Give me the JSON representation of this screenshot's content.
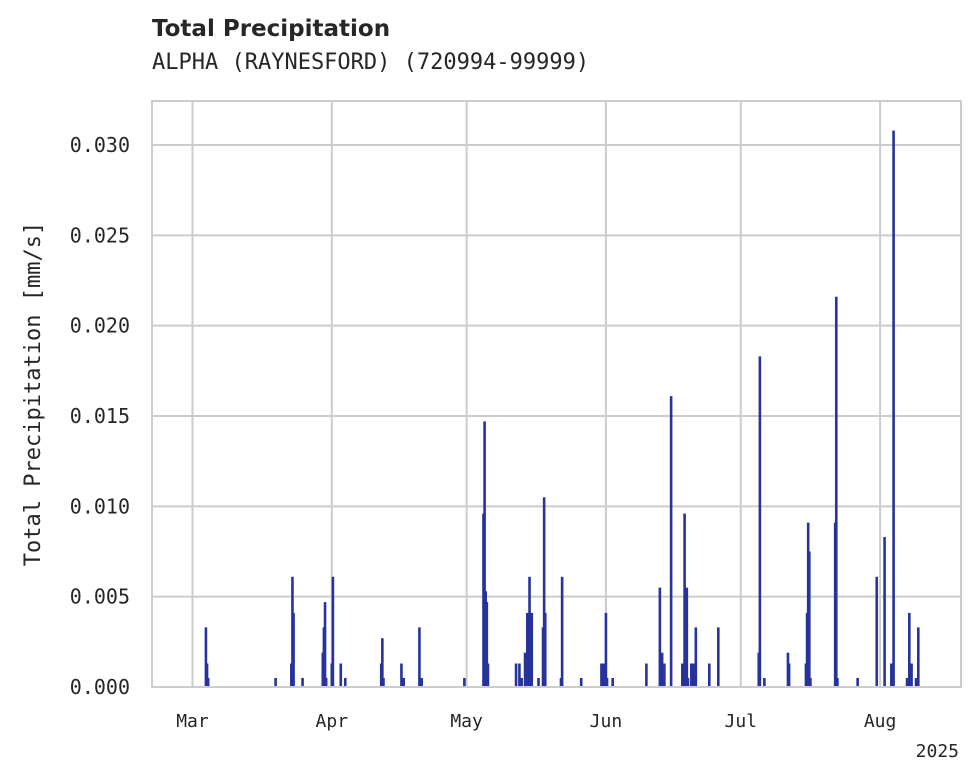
{
  "title": "Total Precipitation",
  "subtitle": "ALPHA (RAYNESFORD) (720994-99999)",
  "chart_data": {
    "type": "bar",
    "title": "Total Precipitation",
    "subtitle": "ALPHA (RAYNESFORD) (720994-99999)",
    "xlabel": "",
    "ylabel": "Total Precipitation [mm/s]",
    "ylim": [
      0,
      0.0325
    ],
    "y_ticks": [
      "0.000",
      "0.005",
      "0.010",
      "0.015",
      "0.020",
      "0.025",
      "0.030"
    ],
    "y_tick_values": [
      0,
      0.005,
      0.01,
      0.015,
      0.02,
      0.025,
      0.03
    ],
    "x_range": [
      "2025-02-20",
      "2025-08-19"
    ],
    "x_ticks": [
      {
        "date": "2025-03-01",
        "label": "Mar"
      },
      {
        "date": "2025-04-01",
        "label": "Apr"
      },
      {
        "date": "2025-05-01",
        "label": "May"
      },
      {
        "date": "2025-06-01",
        "label": "Jun"
      },
      {
        "date": "2025-07-01",
        "label": "Jul"
      },
      {
        "date": "2025-08-01",
        "label": "Aug"
      }
    ],
    "year_label": "2025",
    "grid": true,
    "bar_color": "#27339a",
    "series": [
      {
        "x": [
          "2025-03-04T00:00",
          "2025-03-04T06:00",
          "2025-03-04T12:00",
          "2025-03-19T12:00",
          "2025-03-23T00:00",
          "2025-03-23T06:00",
          "2025-03-23T12:00",
          "2025-03-25T12:00",
          "2025-03-30T00:00",
          "2025-03-30T06:00",
          "2025-03-30T12:00",
          "2025-03-30T18:00",
          "2025-04-01T00:00",
          "2025-04-01T06:00",
          "2025-04-03T00:00",
          "2025-04-04T00:00",
          "2025-04-12T00:00",
          "2025-04-12T06:00",
          "2025-04-12T12:00",
          "2025-04-16T12:00",
          "2025-04-17T00:00",
          "2025-04-20T12:00",
          "2025-04-21T00:00",
          "2025-04-30T12:00",
          "2025-05-04T18:00",
          "2025-05-05T00:00",
          "2025-05-05T06:00",
          "2025-05-05T12:00",
          "2025-05-05T18:00",
          "2025-05-12T00:00",
          "2025-05-12T18:00",
          "2025-05-13T06:00",
          "2025-05-14T00:00",
          "2025-05-14T12:00",
          "2025-05-14T18:00",
          "2025-05-15T00:00",
          "2025-05-15T12:00",
          "2025-05-17T00:00",
          "2025-05-18T00:00",
          "2025-05-18T06:00",
          "2025-05-18T12:00",
          "2025-05-22T00:00",
          "2025-05-22T06:00",
          "2025-05-26T12:00",
          "2025-05-31T00:00",
          "2025-05-31T12:00",
          "2025-06-01T00:00",
          "2025-06-01T06:00",
          "2025-06-02T12:00",
          "2025-06-10T00:00",
          "2025-06-13T00:00",
          "2025-06-13T12:00",
          "2025-06-14T00:00",
          "2025-06-15T12:00",
          "2025-06-18T00:00",
          "2025-06-18T12:00",
          "2025-06-19T00:00",
          "2025-06-19T06:00",
          "2025-06-20T00:00",
          "2025-06-20T12:00",
          "2025-06-21T00:00",
          "2025-06-24T00:00",
          "2025-06-26T00:00",
          "2025-07-05T00:00",
          "2025-07-05T06:00",
          "2025-07-06T06:00",
          "2025-07-11T12:00",
          "2025-07-11T18:00",
          "2025-07-15T12:00",
          "2025-07-15T18:00",
          "2025-07-16T00:00",
          "2025-07-16T06:00",
          "2025-07-16T12:00",
          "2025-07-22T00:00",
          "2025-07-22T06:00",
          "2025-07-22T12:00",
          "2025-07-27T00:00",
          "2025-07-31T06:00",
          "2025-08-02T00:00",
          "2025-08-03T12:00",
          "2025-08-04T00:00",
          "2025-08-07T00:00",
          "2025-08-07T12:00",
          "2025-08-08T00:00",
          "2025-08-09T00:00",
          "2025-08-09T12:00"
        ],
        "values": [
          0.0033,
          0.0013,
          0.0005,
          0.0005,
          0.0013,
          0.0061,
          0.0041,
          0.0005,
          0.0019,
          0.0033,
          0.0047,
          0.0005,
          0.0013,
          0.0061,
          0.0013,
          0.0005,
          0.0013,
          0.0027,
          0.0005,
          0.0013,
          0.0005,
          0.0033,
          0.0005,
          0.0005,
          0.0096,
          0.0147,
          0.0053,
          0.0047,
          0.0013,
          0.0013,
          0.0013,
          0.0005,
          0.0019,
          0.0041,
          0.0033,
          0.0061,
          0.0041,
          0.0005,
          0.0033,
          0.0105,
          0.0041,
          0.0005,
          0.0061,
          0.0005,
          0.0013,
          0.0013,
          0.0041,
          0.0005,
          0.0005,
          0.0013,
          0.0055,
          0.0019,
          0.0013,
          0.0161,
          0.0013,
          0.0096,
          0.0055,
          0.0005,
          0.0013,
          0.0013,
          0.0033,
          0.0013,
          0.0033,
          0.0019,
          0.0183,
          0.0005,
          0.0019,
          0.0013,
          0.0013,
          0.0041,
          0.0091,
          0.0075,
          0.0005,
          0.0091,
          0.0216,
          0.0005,
          0.0005,
          0.0061,
          0.0083,
          0.0013,
          0.0308,
          0.0005,
          0.0041,
          0.0013,
          0.0005,
          0.0033
        ]
      }
    ]
  }
}
